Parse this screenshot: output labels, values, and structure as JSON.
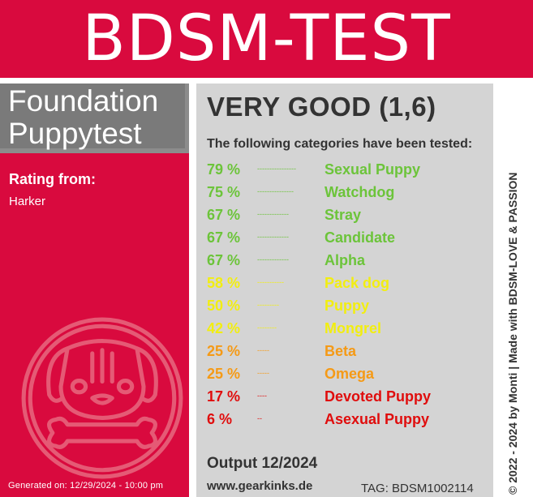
{
  "banner": {
    "title": "BDSM-TEST"
  },
  "test": {
    "title_line1": "Foundation",
    "title_line2": "Puppytest"
  },
  "rating": {
    "label": "Rating from:",
    "name": "Harker"
  },
  "generated": "Generated on: 12/29/2024 - 10:00 pm",
  "result": {
    "grade": "VERY GOOD (1,6)",
    "intro": "The following categories have been tested:",
    "categories": [
      {
        "pct": "79 %",
        "dots": "----------------",
        "name": "Sexual Puppy",
        "color": "#6cc43a"
      },
      {
        "pct": "75 %",
        "dots": "---------------",
        "name": "Watchdog",
        "color": "#6cc43a"
      },
      {
        "pct": "67 %",
        "dots": "-------------",
        "name": "Stray",
        "color": "#6cc43a"
      },
      {
        "pct": "67 %",
        "dots": "-------------",
        "name": "Candidate",
        "color": "#6cc43a"
      },
      {
        "pct": "67 %",
        "dots": "-------------",
        "name": "Alpha",
        "color": "#6cc43a"
      },
      {
        "pct": "58 %",
        "dots": "-----------",
        "name": "Pack dog",
        "color": "#f2ee10"
      },
      {
        "pct": "50 %",
        "dots": "---------",
        "name": "Puppy",
        "color": "#f2ee10"
      },
      {
        "pct": "42 %",
        "dots": "--------",
        "name": "Mongrel",
        "color": "#f2ee10"
      },
      {
        "pct": "25 %",
        "dots": "-----",
        "name": "Beta",
        "color": "#f59a16"
      },
      {
        "pct": "25 %",
        "dots": "-----",
        "name": "Omega",
        "color": "#f59a16"
      },
      {
        "pct": "17 %",
        "dots": "----",
        "name": "Devoted Puppy",
        "color": "#e00d0d"
      },
      {
        "pct": "6 %",
        "dots": "--",
        "name": "Asexual Puppy",
        "color": "#e00d0d"
      }
    ]
  },
  "output": "Output 12/2024",
  "website": "www.gearkinks.de",
  "tag": "TAG: BDSM1002114",
  "credit": "© 2022 - 2024 by Monti | Made with BDSM-LOVE & PASSION",
  "logo": {
    "icon": "puppy-face-with-bone-icon",
    "color": "#e8687f"
  }
}
